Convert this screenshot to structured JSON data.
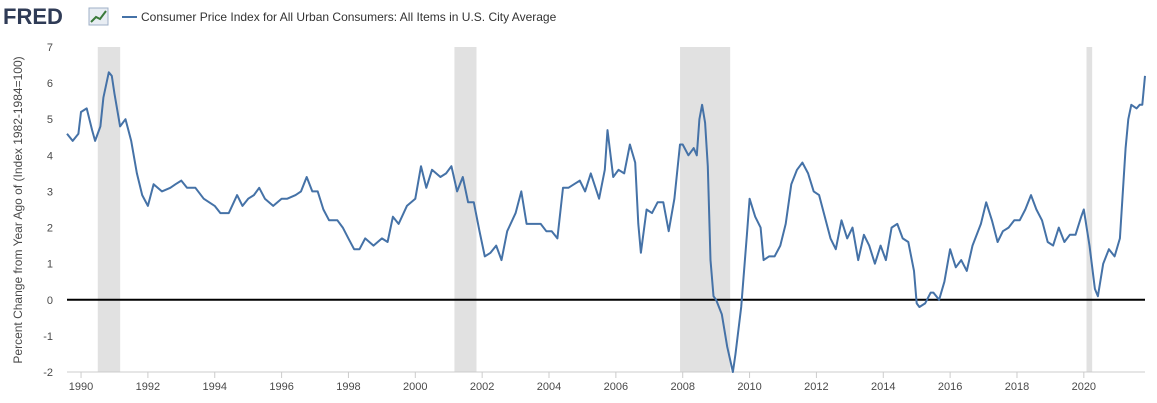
{
  "header": {
    "logo_text": "FRED"
  },
  "colors": {
    "series": "#4572a7",
    "recession": "#e1e1e1",
    "zero_line": "#000000",
    "logo": "#2f3b56"
  },
  "chart_data": {
    "type": "line",
    "title": "",
    "xlabel": "",
    "ylabel": "Percent Change from Year Ago of (Index 1982-1984=100)",
    "xlim": [
      1989.58,
      2021.83
    ],
    "ylim": [
      -2,
      7
    ],
    "x_ticks": [
      1990,
      1992,
      1994,
      1996,
      1998,
      2000,
      2002,
      2004,
      2006,
      2008,
      2010,
      2012,
      2014,
      2016,
      2018,
      2020
    ],
    "x_tick_labels": [
      "1990",
      "1992",
      "1994",
      "1996",
      "1998",
      "2000",
      "2002",
      "2004",
      "2006",
      "2008",
      "2010",
      "2012",
      "2014",
      "2016",
      "2018",
      "2020"
    ],
    "y_ticks": [
      -2,
      -1,
      0,
      1,
      2,
      3,
      4,
      5,
      6,
      7
    ],
    "y_tick_labels": [
      "-2",
      "-1",
      "0",
      "1",
      "2",
      "3",
      "4",
      "5",
      "6",
      "7"
    ],
    "grid": false,
    "legend": "top-left",
    "recessions": [
      [
        1990.5,
        1991.17
      ],
      [
        2001.17,
        2001.83
      ],
      [
        2007.92,
        2009.42
      ],
      [
        2020.08,
        2020.25
      ]
    ],
    "series": [
      {
        "name": "Consumer Price Index for All Urban Consumers: All Items in U.S. City Average",
        "points": [
          [
            1989.58,
            4.6
          ],
          [
            1989.75,
            4.4
          ],
          [
            1989.92,
            4.6
          ],
          [
            1990.0,
            5.2
          ],
          [
            1990.17,
            5.3
          ],
          [
            1990.33,
            4.7
          ],
          [
            1990.42,
            4.4
          ],
          [
            1990.58,
            4.8
          ],
          [
            1990.67,
            5.6
          ],
          [
            1990.83,
            6.3
          ],
          [
            1990.92,
            6.2
          ],
          [
            1991.0,
            5.7
          ],
          [
            1991.17,
            4.8
          ],
          [
            1991.33,
            5.0
          ],
          [
            1991.5,
            4.4
          ],
          [
            1991.67,
            3.5
          ],
          [
            1991.83,
            2.9
          ],
          [
            1992.0,
            2.6
          ],
          [
            1992.17,
            3.2
          ],
          [
            1992.42,
            3.0
          ],
          [
            1992.67,
            3.1
          ],
          [
            1992.83,
            3.2
          ],
          [
            1993.0,
            3.3
          ],
          [
            1993.17,
            3.1
          ],
          [
            1993.42,
            3.1
          ],
          [
            1993.67,
            2.8
          ],
          [
            1994.0,
            2.6
          ],
          [
            1994.17,
            2.4
          ],
          [
            1994.42,
            2.4
          ],
          [
            1994.67,
            2.9
          ],
          [
            1994.83,
            2.6
          ],
          [
            1995.0,
            2.8
          ],
          [
            1995.17,
            2.9
          ],
          [
            1995.33,
            3.1
          ],
          [
            1995.5,
            2.8
          ],
          [
            1995.75,
            2.6
          ],
          [
            1996.0,
            2.8
          ],
          [
            1996.17,
            2.8
          ],
          [
            1996.42,
            2.9
          ],
          [
            1996.58,
            3.0
          ],
          [
            1996.75,
            3.4
          ],
          [
            1996.92,
            3.0
          ],
          [
            1997.08,
            3.0
          ],
          [
            1997.25,
            2.5
          ],
          [
            1997.42,
            2.2
          ],
          [
            1997.67,
            2.2
          ],
          [
            1997.83,
            2.0
          ],
          [
            1998.0,
            1.7
          ],
          [
            1998.17,
            1.4
          ],
          [
            1998.33,
            1.4
          ],
          [
            1998.5,
            1.7
          ],
          [
            1998.75,
            1.5
          ],
          [
            1999.0,
            1.7
          ],
          [
            1999.17,
            1.6
          ],
          [
            1999.33,
            2.3
          ],
          [
            1999.5,
            2.1
          ],
          [
            1999.75,
            2.6
          ],
          [
            2000.0,
            2.8
          ],
          [
            2000.17,
            3.7
          ],
          [
            2000.33,
            3.1
          ],
          [
            2000.5,
            3.6
          ],
          [
            2000.75,
            3.4
          ],
          [
            2000.92,
            3.5
          ],
          [
            2001.08,
            3.7
          ],
          [
            2001.25,
            3.0
          ],
          [
            2001.42,
            3.4
          ],
          [
            2001.58,
            2.7
          ],
          [
            2001.75,
            2.7
          ],
          [
            2001.92,
            1.9
          ],
          [
            2002.08,
            1.2
          ],
          [
            2002.25,
            1.3
          ],
          [
            2002.42,
            1.5
          ],
          [
            2002.58,
            1.1
          ],
          [
            2002.75,
            1.9
          ],
          [
            2003.0,
            2.4
          ],
          [
            2003.17,
            3.0
          ],
          [
            2003.33,
            2.1
          ],
          [
            2003.5,
            2.1
          ],
          [
            2003.75,
            2.1
          ],
          [
            2003.92,
            1.9
          ],
          [
            2004.08,
            1.9
          ],
          [
            2004.25,
            1.7
          ],
          [
            2004.42,
            3.1
          ],
          [
            2004.58,
            3.1
          ],
          [
            2004.75,
            3.2
          ],
          [
            2004.92,
            3.3
          ],
          [
            2005.08,
            3.0
          ],
          [
            2005.25,
            3.5
          ],
          [
            2005.5,
            2.8
          ],
          [
            2005.67,
            3.6
          ],
          [
            2005.75,
            4.7
          ],
          [
            2005.92,
            3.4
          ],
          [
            2006.08,
            3.6
          ],
          [
            2006.25,
            3.5
          ],
          [
            2006.42,
            4.3
          ],
          [
            2006.58,
            3.8
          ],
          [
            2006.67,
            2.1
          ],
          [
            2006.75,
            1.3
          ],
          [
            2006.92,
            2.5
          ],
          [
            2007.08,
            2.4
          ],
          [
            2007.25,
            2.7
          ],
          [
            2007.42,
            2.7
          ],
          [
            2007.58,
            1.9
          ],
          [
            2007.75,
            2.8
          ],
          [
            2007.92,
            4.3
          ],
          [
            2008.0,
            4.3
          ],
          [
            2008.17,
            4.0
          ],
          [
            2008.33,
            4.2
          ],
          [
            2008.42,
            4.0
          ],
          [
            2008.5,
            5.0
          ],
          [
            2008.58,
            5.4
          ],
          [
            2008.67,
            4.9
          ],
          [
            2008.75,
            3.7
          ],
          [
            2008.83,
            1.1
          ],
          [
            2008.92,
            0.1
          ],
          [
            2009.0,
            0.0
          ],
          [
            2009.17,
            -0.4
          ],
          [
            2009.33,
            -1.3
          ],
          [
            2009.5,
            -2.0
          ],
          [
            2009.58,
            -1.5
          ],
          [
            2009.75,
            -0.2
          ],
          [
            2009.92,
            1.8
          ],
          [
            2010.0,
            2.8
          ],
          [
            2010.17,
            2.3
          ],
          [
            2010.33,
            2.0
          ],
          [
            2010.42,
            1.1
          ],
          [
            2010.58,
            1.2
          ],
          [
            2010.75,
            1.2
          ],
          [
            2010.92,
            1.5
          ],
          [
            2011.08,
            2.1
          ],
          [
            2011.25,
            3.2
          ],
          [
            2011.42,
            3.6
          ],
          [
            2011.58,
            3.8
          ],
          [
            2011.75,
            3.5
          ],
          [
            2011.92,
            3.0
          ],
          [
            2012.08,
            2.9
          ],
          [
            2012.25,
            2.3
          ],
          [
            2012.42,
            1.7
          ],
          [
            2012.58,
            1.4
          ],
          [
            2012.75,
            2.2
          ],
          [
            2012.92,
            1.7
          ],
          [
            2013.08,
            2.0
          ],
          [
            2013.25,
            1.1
          ],
          [
            2013.42,
            1.8
          ],
          [
            2013.58,
            1.5
          ],
          [
            2013.75,
            1.0
          ],
          [
            2013.92,
            1.5
          ],
          [
            2014.08,
            1.1
          ],
          [
            2014.25,
            2.0
          ],
          [
            2014.42,
            2.1
          ],
          [
            2014.58,
            1.7
          ],
          [
            2014.75,
            1.6
          ],
          [
            2014.92,
            0.8
          ],
          [
            2015.0,
            -0.1
          ],
          [
            2015.08,
            -0.2
          ],
          [
            2015.25,
            -0.1
          ],
          [
            2015.42,
            0.2
          ],
          [
            2015.5,
            0.2
          ],
          [
            2015.67,
            0.0
          ],
          [
            2015.83,
            0.5
          ],
          [
            2016.0,
            1.4
          ],
          [
            2016.17,
            0.9
          ],
          [
            2016.33,
            1.1
          ],
          [
            2016.5,
            0.8
          ],
          [
            2016.67,
            1.5
          ],
          [
            2016.92,
            2.1
          ],
          [
            2017.08,
            2.7
          ],
          [
            2017.25,
            2.2
          ],
          [
            2017.42,
            1.6
          ],
          [
            2017.58,
            1.9
          ],
          [
            2017.75,
            2.0
          ],
          [
            2017.92,
            2.2
          ],
          [
            2018.08,
            2.2
          ],
          [
            2018.25,
            2.5
          ],
          [
            2018.42,
            2.9
          ],
          [
            2018.58,
            2.5
          ],
          [
            2018.75,
            2.2
          ],
          [
            2018.92,
            1.6
          ],
          [
            2019.08,
            1.5
          ],
          [
            2019.25,
            2.0
          ],
          [
            2019.42,
            1.6
          ],
          [
            2019.58,
            1.8
          ],
          [
            2019.75,
            1.8
          ],
          [
            2019.92,
            2.3
          ],
          [
            2020.0,
            2.5
          ],
          [
            2020.17,
            1.5
          ],
          [
            2020.33,
            0.3
          ],
          [
            2020.42,
            0.1
          ],
          [
            2020.58,
            1.0
          ],
          [
            2020.75,
            1.4
          ],
          [
            2020.92,
            1.2
          ],
          [
            2021.08,
            1.7
          ],
          [
            2021.25,
            4.2
          ],
          [
            2021.33,
            5.0
          ],
          [
            2021.42,
            5.4
          ],
          [
            2021.58,
            5.3
          ],
          [
            2021.67,
            5.4
          ],
          [
            2021.75,
            5.4
          ],
          [
            2021.83,
            6.2
          ]
        ]
      }
    ]
  }
}
